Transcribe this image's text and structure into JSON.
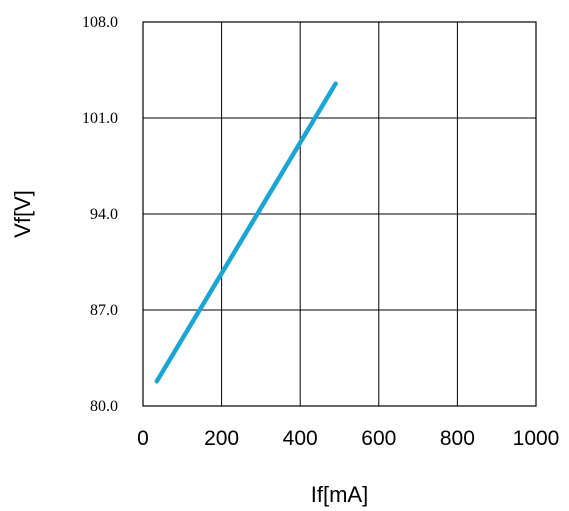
{
  "chart_data": {
    "type": "line",
    "title": "",
    "xlabel": "If[mA]",
    "ylabel": "Vf[V]",
    "xlim": [
      0,
      1000
    ],
    "ylim": [
      80.0,
      108.0
    ],
    "x_ticks": [
      "0",
      "200",
      "400",
      "600",
      "800",
      "1000"
    ],
    "y_ticks": [
      "80.0",
      "87.0",
      "94.0",
      "101.0",
      "108.0"
    ],
    "grid": true,
    "legend": "none",
    "series": [
      {
        "color": "#1aa6d4",
        "x": [
          35,
          490
        ],
        "y": [
          81.8,
          103.5
        ]
      }
    ]
  }
}
